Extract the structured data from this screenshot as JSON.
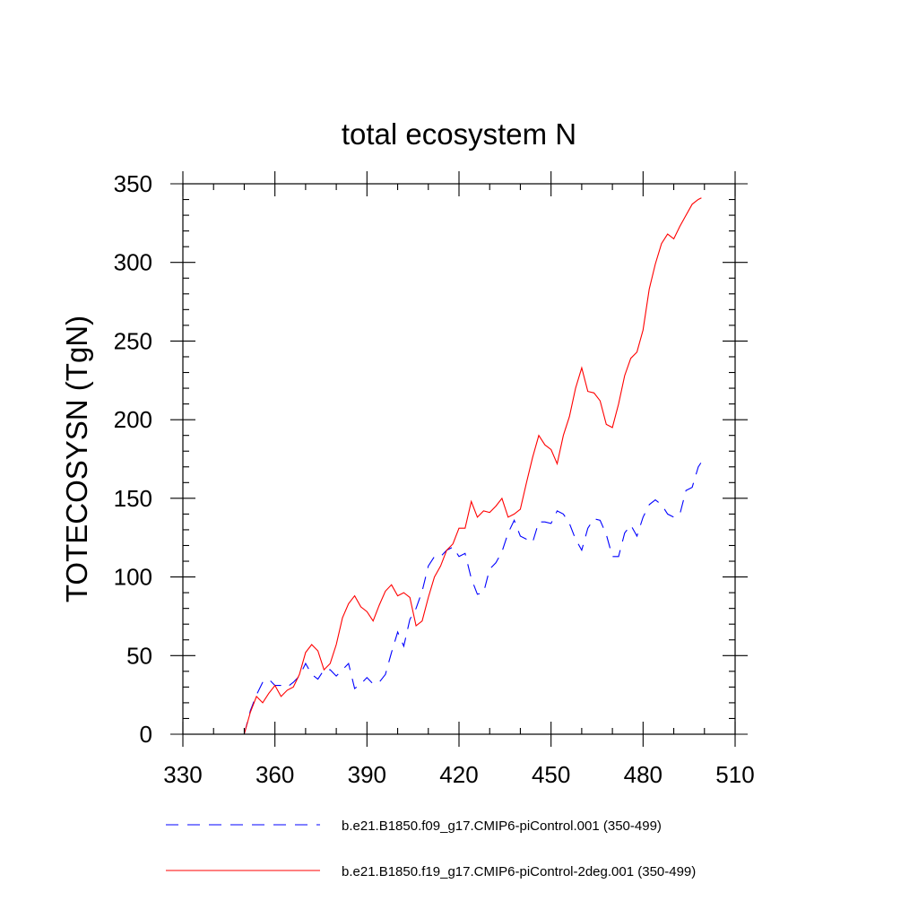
{
  "chart_data": {
    "type": "line",
    "title": "total ecosystem N",
    "xlabel": "",
    "ylabel": "TOTECOSYSN  (TgN)",
    "xlim": [
      330,
      510
    ],
    "ylim": [
      0,
      350
    ],
    "x_ticks": [
      330,
      360,
      390,
      420,
      450,
      480,
      510
    ],
    "y_ticks": [
      0,
      50,
      100,
      150,
      200,
      250,
      300,
      350
    ],
    "x_minor_step": 10,
    "y_minor_step": 10,
    "grid": false,
    "legend_position": "bottom",
    "series": [
      {
        "name": "b.e21.B1850.f09_g17.CMIP6-piControl.001 (350-499)",
        "color": "#0000ff",
        "dash": "dashed",
        "x": [
          350,
          352,
          354,
          356,
          358,
          360,
          362,
          364,
          366,
          368,
          370,
          372,
          374,
          376,
          378,
          380,
          382,
          384,
          386,
          388,
          390,
          392,
          394,
          396,
          398,
          400,
          402,
          404,
          406,
          408,
          410,
          412,
          414,
          416,
          418,
          420,
          422,
          424,
          426,
          428,
          430,
          432,
          434,
          436,
          438,
          440,
          442,
          444,
          446,
          448,
          450,
          452,
          454,
          456,
          458,
          460,
          462,
          464,
          466,
          468,
          470,
          472,
          474,
          476,
          478,
          480,
          482,
          484,
          486,
          488,
          490,
          492,
          494,
          496,
          498,
          499
        ],
        "y": [
          0,
          15,
          25,
          33,
          35,
          31,
          31,
          30,
          33,
          37,
          45,
          38,
          35,
          41,
          41,
          37,
          41,
          45,
          29,
          32,
          36,
          32,
          33,
          38,
          52,
          65,
          56,
          73,
          80,
          91,
          107,
          113,
          113,
          117,
          119,
          113,
          115,
          99,
          89,
          90,
          105,
          109,
          116,
          128,
          136,
          126,
          124,
          122,
          135,
          135,
          134,
          142,
          140,
          134,
          124,
          117,
          131,
          137,
          136,
          127,
          113,
          113,
          128,
          133,
          126,
          138,
          146,
          149,
          146,
          140,
          138,
          140,
          155,
          157,
          170,
          173
        ]
      },
      {
        "name": "b.e21.B1850.f19_g17.CMIP6-piControl-2deg.001 (350-499)",
        "color": "#ff0000",
        "dash": "solid",
        "x": [
          350,
          352,
          354,
          356,
          358,
          360,
          362,
          364,
          366,
          368,
          370,
          372,
          374,
          376,
          378,
          380,
          382,
          384,
          386,
          388,
          390,
          392,
          394,
          396,
          398,
          400,
          402,
          404,
          406,
          408,
          410,
          412,
          414,
          416,
          418,
          420,
          422,
          424,
          426,
          428,
          430,
          432,
          434,
          436,
          438,
          440,
          442,
          444,
          446,
          448,
          450,
          452,
          454,
          456,
          458,
          460,
          462,
          464,
          466,
          468,
          470,
          472,
          474,
          476,
          478,
          480,
          482,
          484,
          486,
          488,
          490,
          492,
          494,
          496,
          498,
          499
        ],
        "y": [
          0,
          14,
          24,
          20,
          26,
          31,
          24,
          28,
          30,
          38,
          52,
          57,
          53,
          41,
          45,
          57,
          74,
          83,
          88,
          81,
          78,
          72,
          82,
          91,
          95,
          88,
          90,
          87,
          69,
          72,
          87,
          100,
          107,
          117,
          121,
          131,
          131,
          148,
          138,
          142,
          141,
          145,
          150,
          138,
          140,
          143,
          160,
          176,
          190,
          184,
          181,
          172,
          190,
          202,
          220,
          233,
          218,
          217,
          212,
          197,
          195,
          210,
          228,
          239,
          243,
          257,
          283,
          299,
          312,
          318,
          315,
          323,
          330,
          337,
          340,
          341
        ]
      }
    ]
  }
}
